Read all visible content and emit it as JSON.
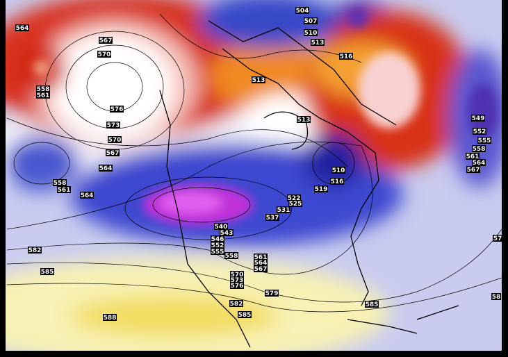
{
  "contour_labels": [
    "564",
    "567",
    "570",
    "558",
    "561",
    "576",
    "573",
    "570",
    "567",
    "564",
    "558",
    "561",
    "564",
    "582",
    "585",
    "588",
    "504",
    "507",
    "510",
    "513",
    "516",
    "513",
    "513",
    "510",
    "516",
    "519",
    "522",
    "525",
    "531",
    "537",
    "540",
    "543",
    "546",
    "552",
    "555",
    "558",
    "561",
    "564",
    "567",
    "570",
    "573",
    "576",
    "579",
    "582",
    "585",
    "585",
    "549",
    "552",
    "555",
    "558",
    "561",
    "564",
    "567",
    "57",
    "58"
  ]
}
